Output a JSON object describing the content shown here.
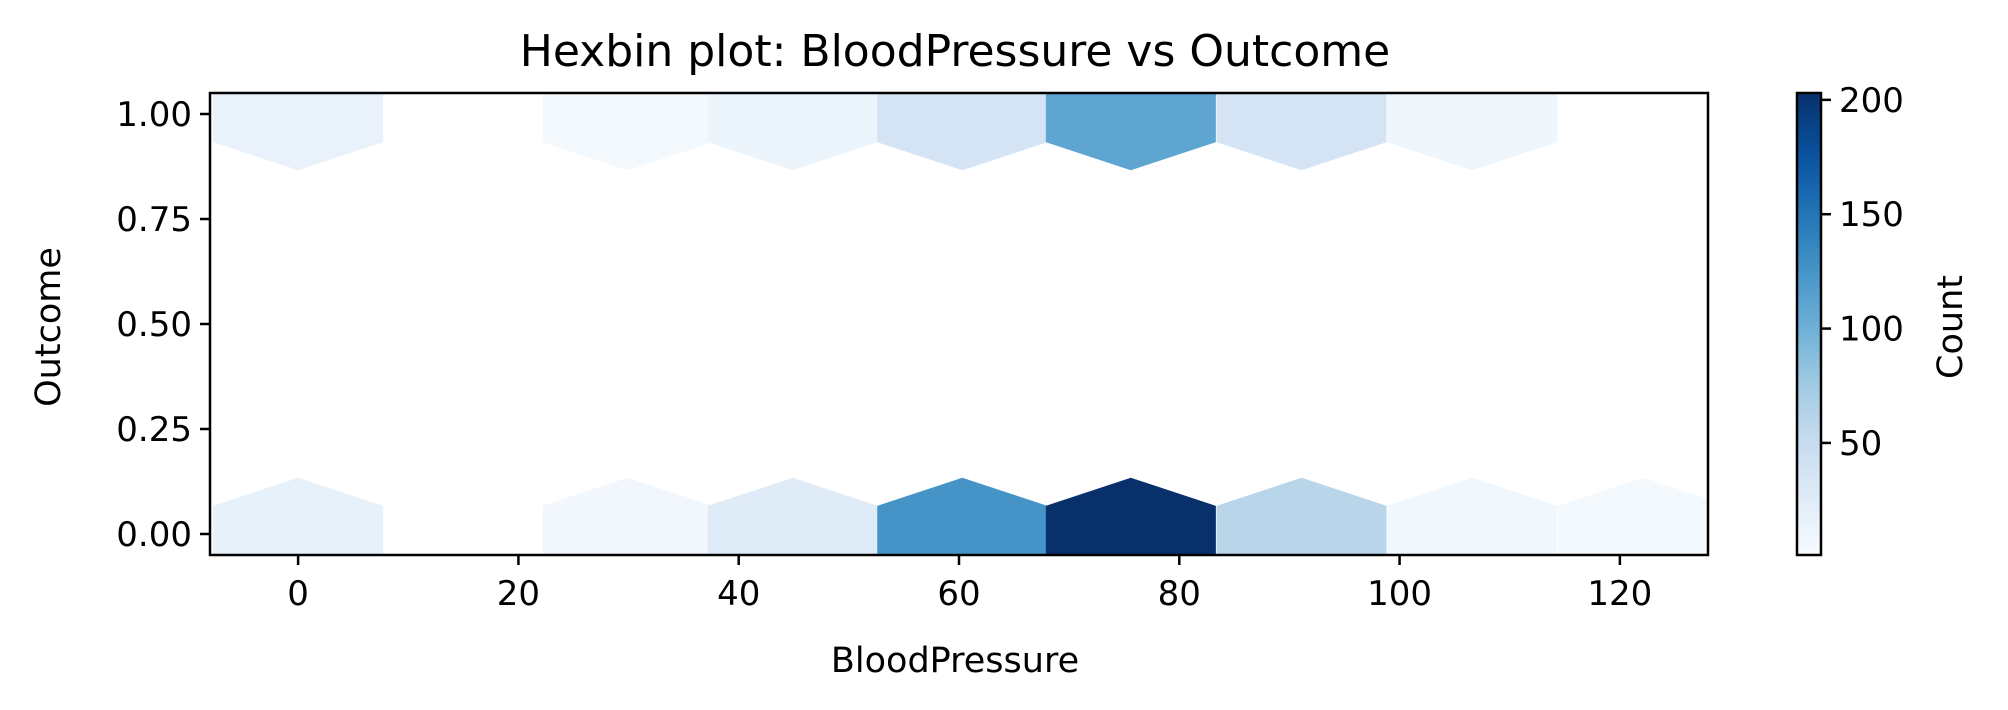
{
  "chart_data": {
    "type": "hexbin",
    "title": "Hexbin plot: BloodPressure vs Outcome",
    "xlabel": "BloodPressure",
    "ylabel": "Outcome",
    "xlim": [
      -8,
      128
    ],
    "ylim": [
      -0.05,
      1.05
    ],
    "xticks": [
      0,
      20,
      40,
      60,
      80,
      100,
      120
    ],
    "xtick_labels": [
      "0",
      "20",
      "40",
      "60",
      "80",
      "100",
      "120"
    ],
    "yticks": [
      0.0,
      0.25,
      0.5,
      0.75,
      1.0
    ],
    "ytick_labels": [
      "0.00",
      "0.25",
      "0.50",
      "0.75",
      "1.00"
    ],
    "colormap": "Blues",
    "colorbar": {
      "label": "Count",
      "min": 1,
      "max": 203,
      "ticks": [
        50,
        100,
        150,
        200
      ],
      "tick_labels": [
        "50",
        "100",
        "150",
        "200"
      ]
    },
    "grid": false,
    "bins": [
      {
        "x": 0,
        "y": 0,
        "count": 17
      },
      {
        "x": 29.9,
        "y": 0,
        "count": 7
      },
      {
        "x": 44.9,
        "y": 0,
        "count": 25
      },
      {
        "x": 60.3,
        "y": 0,
        "count": 125
      },
      {
        "x": 75.6,
        "y": 0,
        "count": 203
      },
      {
        "x": 91.1,
        "y": 0,
        "count": 60
      },
      {
        "x": 106.6,
        "y": 0,
        "count": 8
      },
      {
        "x": 122.1,
        "y": 0,
        "count": 4
      },
      {
        "x": 0,
        "y": 1,
        "count": 15
      },
      {
        "x": 29.9,
        "y": 1,
        "count": 4
      },
      {
        "x": 44.9,
        "y": 1,
        "count": 12
      },
      {
        "x": 60.3,
        "y": 1,
        "count": 37
      },
      {
        "x": 75.6,
        "y": 1,
        "count": 110
      },
      {
        "x": 91.1,
        "y": 1,
        "count": 37
      },
      {
        "x": 106.6,
        "y": 1,
        "count": 9
      }
    ]
  }
}
